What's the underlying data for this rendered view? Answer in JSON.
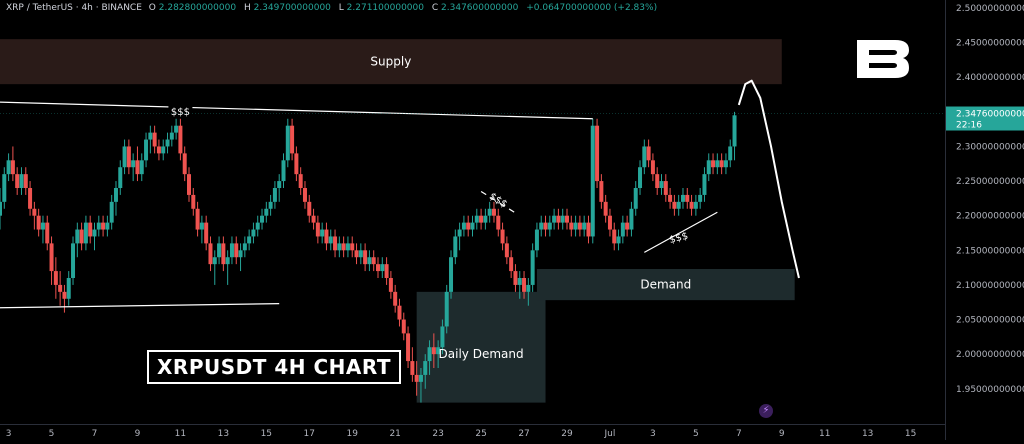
{
  "header": {
    "symbol": "XRP / TetherUS · 4h · BINANCE",
    "open_label": "O",
    "open": "2.282800000000",
    "high_label": "H",
    "high": "2.349700000000",
    "low_label": "L",
    "low": "2.271100000000",
    "close_label": "C",
    "close": "2.347600000000",
    "change": "+0.064700000000 (+2.83%)"
  },
  "title_box": "XRPUSDT 4H CHART",
  "colors": {
    "up": "#26a69a",
    "down": "#ef5350",
    "supply_zone": "#2a1b18",
    "demand_zone": "#1e2b2d",
    "price_tag": "#26a69a",
    "background": "#000000"
  },
  "icons": {
    "logo": "brand-b-logo",
    "bolt": "lightning-icon"
  },
  "chart_data": {
    "type": "candlestick",
    "title": "XRPUSDT 4H CHART",
    "xlabel": "",
    "ylabel": "",
    "ylim": [
      1.915,
      2.5
    ],
    "y_ticks": [
      "2.500000000000",
      "2.450000000000",
      "2.400000000000",
      "2.350000000000",
      "2.300000000000",
      "2.250000000000",
      "2.200000000000",
      "2.150000000000",
      "2.100000000000",
      "2.050000000000",
      "2.000000000000",
      "1.950000000000"
    ],
    "y_tick_values": [
      2.5,
      2.45,
      2.4,
      2.35,
      2.3,
      2.25,
      2.2,
      2.15,
      2.1,
      2.05,
      2.0,
      1.95
    ],
    "x_ticks": [
      "3",
      "5",
      "7",
      "9",
      "11",
      "13",
      "15",
      "17",
      "19",
      "21",
      "23",
      "25",
      "27",
      "29",
      "Jul",
      "3",
      "5",
      "7",
      "9",
      "11",
      "13",
      "15"
    ],
    "x_tick_days": [
      3,
      5,
      7,
      9,
      11,
      13,
      15,
      17,
      19,
      21,
      23,
      25,
      27,
      29,
      31,
      33,
      35,
      37,
      39,
      41,
      43,
      45
    ],
    "xlim_days": [
      2.6,
      46.6
    ],
    "last_price": "2.347600000000",
    "last_price_value": 2.3476,
    "countdown": "22:16",
    "candles_ohlc_day": [
      [
        2.6,
        2.2,
        2.24,
        2.18,
        2.22
      ],
      [
        2.8,
        2.22,
        2.27,
        2.21,
        2.26
      ],
      [
        3.0,
        2.26,
        2.29,
        2.25,
        2.28
      ],
      [
        3.2,
        2.28,
        2.3,
        2.25,
        2.26
      ],
      [
        3.4,
        2.26,
        2.27,
        2.23,
        2.24
      ],
      [
        3.6,
        2.24,
        2.27,
        2.23,
        2.26
      ],
      [
        3.8,
        2.26,
        2.27,
        2.23,
        2.24
      ],
      [
        4.0,
        2.24,
        2.25,
        2.2,
        2.21
      ],
      [
        4.2,
        2.21,
        2.22,
        2.18,
        2.2
      ],
      [
        4.4,
        2.2,
        2.21,
        2.17,
        2.18
      ],
      [
        4.6,
        2.18,
        2.2,
        2.16,
        2.19
      ],
      [
        4.8,
        2.19,
        2.2,
        2.15,
        2.16
      ],
      [
        5.0,
        2.16,
        2.17,
        2.1,
        2.12
      ],
      [
        5.2,
        2.12,
        2.14,
        2.08,
        2.1
      ],
      [
        5.4,
        2.1,
        2.12,
        2.07,
        2.09
      ],
      [
        5.6,
        2.09,
        2.1,
        2.06,
        2.08
      ],
      [
        5.8,
        2.08,
        2.12,
        2.07,
        2.11
      ],
      [
        6.0,
        2.11,
        2.17,
        2.1,
        2.16
      ],
      [
        6.2,
        2.16,
        2.19,
        2.14,
        2.18
      ],
      [
        6.4,
        2.18,
        2.19,
        2.15,
        2.16
      ],
      [
        6.6,
        2.16,
        2.2,
        2.15,
        2.19
      ],
      [
        6.8,
        2.19,
        2.2,
        2.16,
        2.17
      ],
      [
        7.0,
        2.17,
        2.19,
        2.15,
        2.18
      ],
      [
        7.2,
        2.18,
        2.2,
        2.17,
        2.19
      ],
      [
        7.4,
        2.19,
        2.2,
        2.17,
        2.18
      ],
      [
        7.6,
        2.18,
        2.2,
        2.17,
        2.19
      ],
      [
        7.8,
        2.19,
        2.23,
        2.18,
        2.22
      ],
      [
        8.0,
        2.22,
        2.25,
        2.2,
        2.24
      ],
      [
        8.2,
        2.24,
        2.28,
        2.23,
        2.27
      ],
      [
        8.4,
        2.27,
        2.31,
        2.26,
        2.3
      ],
      [
        8.6,
        2.3,
        2.31,
        2.26,
        2.27
      ],
      [
        8.8,
        2.27,
        2.29,
        2.25,
        2.28
      ],
      [
        9.0,
        2.28,
        2.3,
        2.25,
        2.26
      ],
      [
        9.2,
        2.26,
        2.29,
        2.25,
        2.28
      ],
      [
        9.4,
        2.28,
        2.32,
        2.27,
        2.31
      ],
      [
        9.6,
        2.31,
        2.33,
        2.29,
        2.32
      ],
      [
        9.8,
        2.32,
        2.33,
        2.29,
        2.3
      ],
      [
        10.0,
        2.3,
        2.31,
        2.28,
        2.29
      ],
      [
        10.2,
        2.29,
        2.31,
        2.28,
        2.3
      ],
      [
        10.4,
        2.3,
        2.32,
        2.29,
        2.31
      ],
      [
        10.6,
        2.31,
        2.33,
        2.3,
        2.32
      ],
      [
        10.8,
        2.32,
        2.34,
        2.31,
        2.33
      ],
      [
        11.0,
        2.33,
        2.34,
        2.28,
        2.29
      ],
      [
        11.2,
        2.29,
        2.3,
        2.25,
        2.26
      ],
      [
        11.4,
        2.26,
        2.27,
        2.22,
        2.23
      ],
      [
        11.6,
        2.23,
        2.24,
        2.2,
        2.21
      ],
      [
        11.8,
        2.21,
        2.22,
        2.17,
        2.18
      ],
      [
        12.0,
        2.18,
        2.2,
        2.16,
        2.19
      ],
      [
        12.2,
        2.19,
        2.2,
        2.15,
        2.16
      ],
      [
        12.4,
        2.16,
        2.17,
        2.12,
        2.13
      ],
      [
        12.6,
        2.13,
        2.15,
        2.1,
        2.14
      ],
      [
        12.8,
        2.14,
        2.17,
        2.13,
        2.16
      ],
      [
        13.0,
        2.16,
        2.17,
        2.12,
        2.13
      ],
      [
        13.2,
        2.13,
        2.15,
        2.1,
        2.14
      ],
      [
        13.4,
        2.14,
        2.17,
        2.13,
        2.16
      ],
      [
        13.6,
        2.16,
        2.17,
        2.13,
        2.14
      ],
      [
        13.8,
        2.14,
        2.16,
        2.12,
        2.15
      ],
      [
        14.0,
        2.15,
        2.17,
        2.14,
        2.16
      ],
      [
        14.2,
        2.16,
        2.18,
        2.15,
        2.17
      ],
      [
        14.4,
        2.17,
        2.19,
        2.16,
        2.18
      ],
      [
        14.6,
        2.18,
        2.2,
        2.17,
        2.19
      ],
      [
        14.8,
        2.19,
        2.21,
        2.18,
        2.2
      ],
      [
        15.0,
        2.2,
        2.22,
        2.19,
        2.21
      ],
      [
        15.2,
        2.21,
        2.23,
        2.2,
        2.22
      ],
      [
        15.4,
        2.22,
        2.25,
        2.21,
        2.24
      ],
      [
        15.6,
        2.24,
        2.26,
        2.22,
        2.25
      ],
      [
        15.8,
        2.25,
        2.29,
        2.24,
        2.28
      ],
      [
        16.0,
        2.28,
        2.34,
        2.27,
        2.33
      ],
      [
        16.2,
        2.33,
        2.34,
        2.28,
        2.29
      ],
      [
        16.4,
        2.29,
        2.3,
        2.25,
        2.26
      ],
      [
        16.6,
        2.26,
        2.27,
        2.23,
        2.24
      ],
      [
        16.8,
        2.24,
        2.25,
        2.21,
        2.22
      ],
      [
        17.0,
        2.22,
        2.23,
        2.19,
        2.2
      ],
      [
        17.2,
        2.2,
        2.21,
        2.18,
        2.19
      ],
      [
        17.4,
        2.19,
        2.2,
        2.16,
        2.17
      ],
      [
        17.6,
        2.17,
        2.19,
        2.16,
        2.18
      ],
      [
        17.8,
        2.18,
        2.19,
        2.15,
        2.16
      ],
      [
        18.0,
        2.16,
        2.18,
        2.15,
        2.17
      ],
      [
        18.2,
        2.17,
        2.18,
        2.14,
        2.15
      ],
      [
        18.4,
        2.15,
        2.17,
        2.14,
        2.16
      ],
      [
        18.6,
        2.16,
        2.17,
        2.14,
        2.15
      ],
      [
        18.8,
        2.15,
        2.17,
        2.14,
        2.16
      ],
      [
        19.0,
        2.16,
        2.17,
        2.14,
        2.15
      ],
      [
        19.2,
        2.15,
        2.16,
        2.13,
        2.14
      ],
      [
        19.4,
        2.14,
        2.16,
        2.13,
        2.15
      ],
      [
        19.6,
        2.15,
        2.16,
        2.12,
        2.13
      ],
      [
        19.8,
        2.13,
        2.15,
        2.12,
        2.14
      ],
      [
        20.0,
        2.14,
        2.15,
        2.12,
        2.13
      ],
      [
        20.2,
        2.13,
        2.14,
        2.11,
        2.12
      ],
      [
        20.4,
        2.12,
        2.14,
        2.11,
        2.13
      ],
      [
        20.6,
        2.13,
        2.14,
        2.1,
        2.11
      ],
      [
        20.8,
        2.11,
        2.12,
        2.08,
        2.09
      ],
      [
        21.0,
        2.09,
        2.1,
        2.06,
        2.07
      ],
      [
        21.2,
        2.07,
        2.08,
        2.04,
        2.05
      ],
      [
        21.4,
        2.05,
        2.06,
        2.02,
        2.03
      ],
      [
        21.6,
        2.03,
        2.04,
        1.98,
        1.99
      ],
      [
        21.8,
        1.99,
        2.01,
        1.96,
        1.97
      ],
      [
        22.0,
        1.97,
        1.99,
        1.94,
        1.96
      ],
      [
        22.2,
        1.96,
        1.98,
        1.93,
        1.97
      ],
      [
        22.4,
        1.97,
        2.0,
        1.95,
        1.99
      ],
      [
        22.6,
        1.99,
        2.02,
        1.97,
        2.01
      ],
      [
        22.8,
        2.01,
        2.03,
        1.98,
        2.0
      ],
      [
        23.0,
        2.0,
        2.02,
        1.98,
        2.01
      ],
      [
        23.2,
        2.01,
        2.05,
        2.0,
        2.04
      ],
      [
        23.4,
        2.04,
        2.1,
        2.03,
        2.09
      ],
      [
        23.6,
        2.09,
        2.15,
        2.08,
        2.14
      ],
      [
        23.8,
        2.14,
        2.18,
        2.13,
        2.17
      ],
      [
        24.0,
        2.17,
        2.19,
        2.15,
        2.18
      ],
      [
        24.2,
        2.18,
        2.2,
        2.17,
        2.19
      ],
      [
        24.4,
        2.19,
        2.2,
        2.17,
        2.18
      ],
      [
        24.6,
        2.18,
        2.2,
        2.17,
        2.19
      ],
      [
        24.8,
        2.19,
        2.21,
        2.18,
        2.2
      ],
      [
        25.0,
        2.2,
        2.21,
        2.18,
        2.19
      ],
      [
        25.2,
        2.19,
        2.21,
        2.18,
        2.2
      ],
      [
        25.4,
        2.2,
        2.22,
        2.19,
        2.21
      ],
      [
        25.6,
        2.21,
        2.22,
        2.19,
        2.2
      ],
      [
        25.8,
        2.2,
        2.21,
        2.17,
        2.18
      ],
      [
        26.0,
        2.18,
        2.19,
        2.15,
        2.16
      ],
      [
        26.2,
        2.16,
        2.17,
        2.13,
        2.14
      ],
      [
        26.4,
        2.14,
        2.15,
        2.11,
        2.12
      ],
      [
        26.6,
        2.12,
        2.13,
        2.09,
        2.1
      ],
      [
        26.8,
        2.1,
        2.12,
        2.08,
        2.11
      ],
      [
        27.0,
        2.11,
        2.12,
        2.08,
        2.09
      ],
      [
        27.2,
        2.09,
        2.11,
        2.07,
        2.1
      ],
      [
        27.4,
        2.1,
        2.16,
        2.09,
        2.15
      ],
      [
        27.6,
        2.15,
        2.19,
        2.14,
        2.18
      ],
      [
        27.8,
        2.18,
        2.2,
        2.17,
        2.19
      ],
      [
        28.0,
        2.19,
        2.2,
        2.17,
        2.18
      ],
      [
        28.2,
        2.18,
        2.2,
        2.17,
        2.19
      ],
      [
        28.4,
        2.19,
        2.21,
        2.18,
        2.2
      ],
      [
        28.6,
        2.2,
        2.21,
        2.18,
        2.19
      ],
      [
        28.8,
        2.19,
        2.21,
        2.18,
        2.2
      ],
      [
        29.0,
        2.2,
        2.21,
        2.18,
        2.19
      ],
      [
        29.2,
        2.19,
        2.2,
        2.17,
        2.18
      ],
      [
        29.4,
        2.18,
        2.2,
        2.17,
        2.19
      ],
      [
        29.6,
        2.19,
        2.2,
        2.17,
        2.18
      ],
      [
        29.8,
        2.18,
        2.2,
        2.17,
        2.19
      ],
      [
        30.0,
        2.19,
        2.2,
        2.16,
        2.17
      ],
      [
        30.2,
        2.17,
        2.34,
        2.16,
        2.33
      ],
      [
        30.4,
        2.33,
        2.34,
        2.24,
        2.25
      ],
      [
        30.6,
        2.25,
        2.26,
        2.21,
        2.22
      ],
      [
        30.8,
        2.22,
        2.23,
        2.19,
        2.2
      ],
      [
        31.0,
        2.2,
        2.21,
        2.17,
        2.18
      ],
      [
        31.2,
        2.18,
        2.19,
        2.15,
        2.16
      ],
      [
        31.4,
        2.16,
        2.18,
        2.15,
        2.17
      ],
      [
        31.6,
        2.17,
        2.2,
        2.16,
        2.19
      ],
      [
        31.8,
        2.19,
        2.2,
        2.17,
        2.18
      ],
      [
        32.0,
        2.18,
        2.22,
        2.17,
        2.21
      ],
      [
        32.2,
        2.21,
        2.25,
        2.2,
        2.24
      ],
      [
        32.4,
        2.24,
        2.28,
        2.23,
        2.27
      ],
      [
        32.6,
        2.27,
        2.31,
        2.26,
        2.3
      ],
      [
        32.8,
        2.3,
        2.31,
        2.27,
        2.28
      ],
      [
        33.0,
        2.28,
        2.29,
        2.25,
        2.26
      ],
      [
        33.2,
        2.26,
        2.27,
        2.23,
        2.24
      ],
      [
        33.4,
        2.24,
        2.26,
        2.23,
        2.25
      ],
      [
        33.6,
        2.25,
        2.26,
        2.22,
        2.23
      ],
      [
        33.8,
        2.23,
        2.24,
        2.21,
        2.22
      ],
      [
        34.0,
        2.22,
        2.23,
        2.2,
        2.21
      ],
      [
        34.2,
        2.21,
        2.23,
        2.2,
        2.22
      ],
      [
        34.4,
        2.22,
        2.24,
        2.21,
        2.23
      ],
      [
        34.6,
        2.23,
        2.24,
        2.21,
        2.22
      ],
      [
        34.8,
        2.22,
        2.23,
        2.2,
        2.21
      ],
      [
        35.0,
        2.21,
        2.23,
        2.2,
        2.22
      ],
      [
        35.2,
        2.22,
        2.24,
        2.21,
        2.23
      ],
      [
        35.4,
        2.23,
        2.27,
        2.22,
        2.26
      ],
      [
        35.6,
        2.26,
        2.29,
        2.25,
        2.28
      ],
      [
        35.8,
        2.28,
        2.29,
        2.26,
        2.27
      ],
      [
        36.0,
        2.27,
        2.29,
        2.26,
        2.28
      ],
      [
        36.2,
        2.28,
        2.29,
        2.26,
        2.27
      ],
      [
        36.4,
        2.27,
        2.29,
        2.26,
        2.28
      ],
      [
        36.6,
        2.28,
        2.31,
        2.27,
        2.3
      ],
      [
        36.8,
        2.3,
        2.35,
        2.28,
        2.345
      ]
    ]
  },
  "annotations": {
    "supply": "Supply",
    "demand": "Demand",
    "daily_demand": "Daily Demand",
    "liquidity_top": "$$$",
    "liquidity_mid": "$$$",
    "liquidity_right": "$$$",
    "zones": {
      "supply": {
        "x_days": [
          2.6,
          39.0
        ],
        "y": [
          2.39,
          2.455
        ]
      },
      "demand": {
        "x_days": [
          27.6,
          39.6
        ],
        "y": [
          2.078,
          2.123
        ]
      },
      "daily_demand": {
        "x_days": [
          22.0,
          28.0
        ],
        "y": [
          1.93,
          2.09
        ]
      }
    },
    "lines": {
      "top_trendline": [
        [
          2.6,
          2.364
        ],
        [
          30.2,
          2.34
        ]
      ],
      "bottom_trendline": [
        [
          2.6,
          2.067
        ],
        [
          15.6,
          2.073
        ]
      ],
      "mid_liquidity": [
        [
          25.0,
          2.235
        ],
        [
          26.6,
          2.204
        ]
      ],
      "right_liquidity": [
        [
          32.6,
          2.147
        ],
        [
          36.0,
          2.205
        ]
      ]
    },
    "projection_path": [
      [
        37.0,
        2.36
      ],
      [
        37.3,
        2.39
      ],
      [
        37.6,
        2.395
      ],
      [
        38.0,
        2.37
      ],
      [
        38.5,
        2.3
      ],
      [
        39.0,
        2.22
      ],
      [
        39.5,
        2.15
      ],
      [
        39.8,
        2.11
      ]
    ]
  }
}
